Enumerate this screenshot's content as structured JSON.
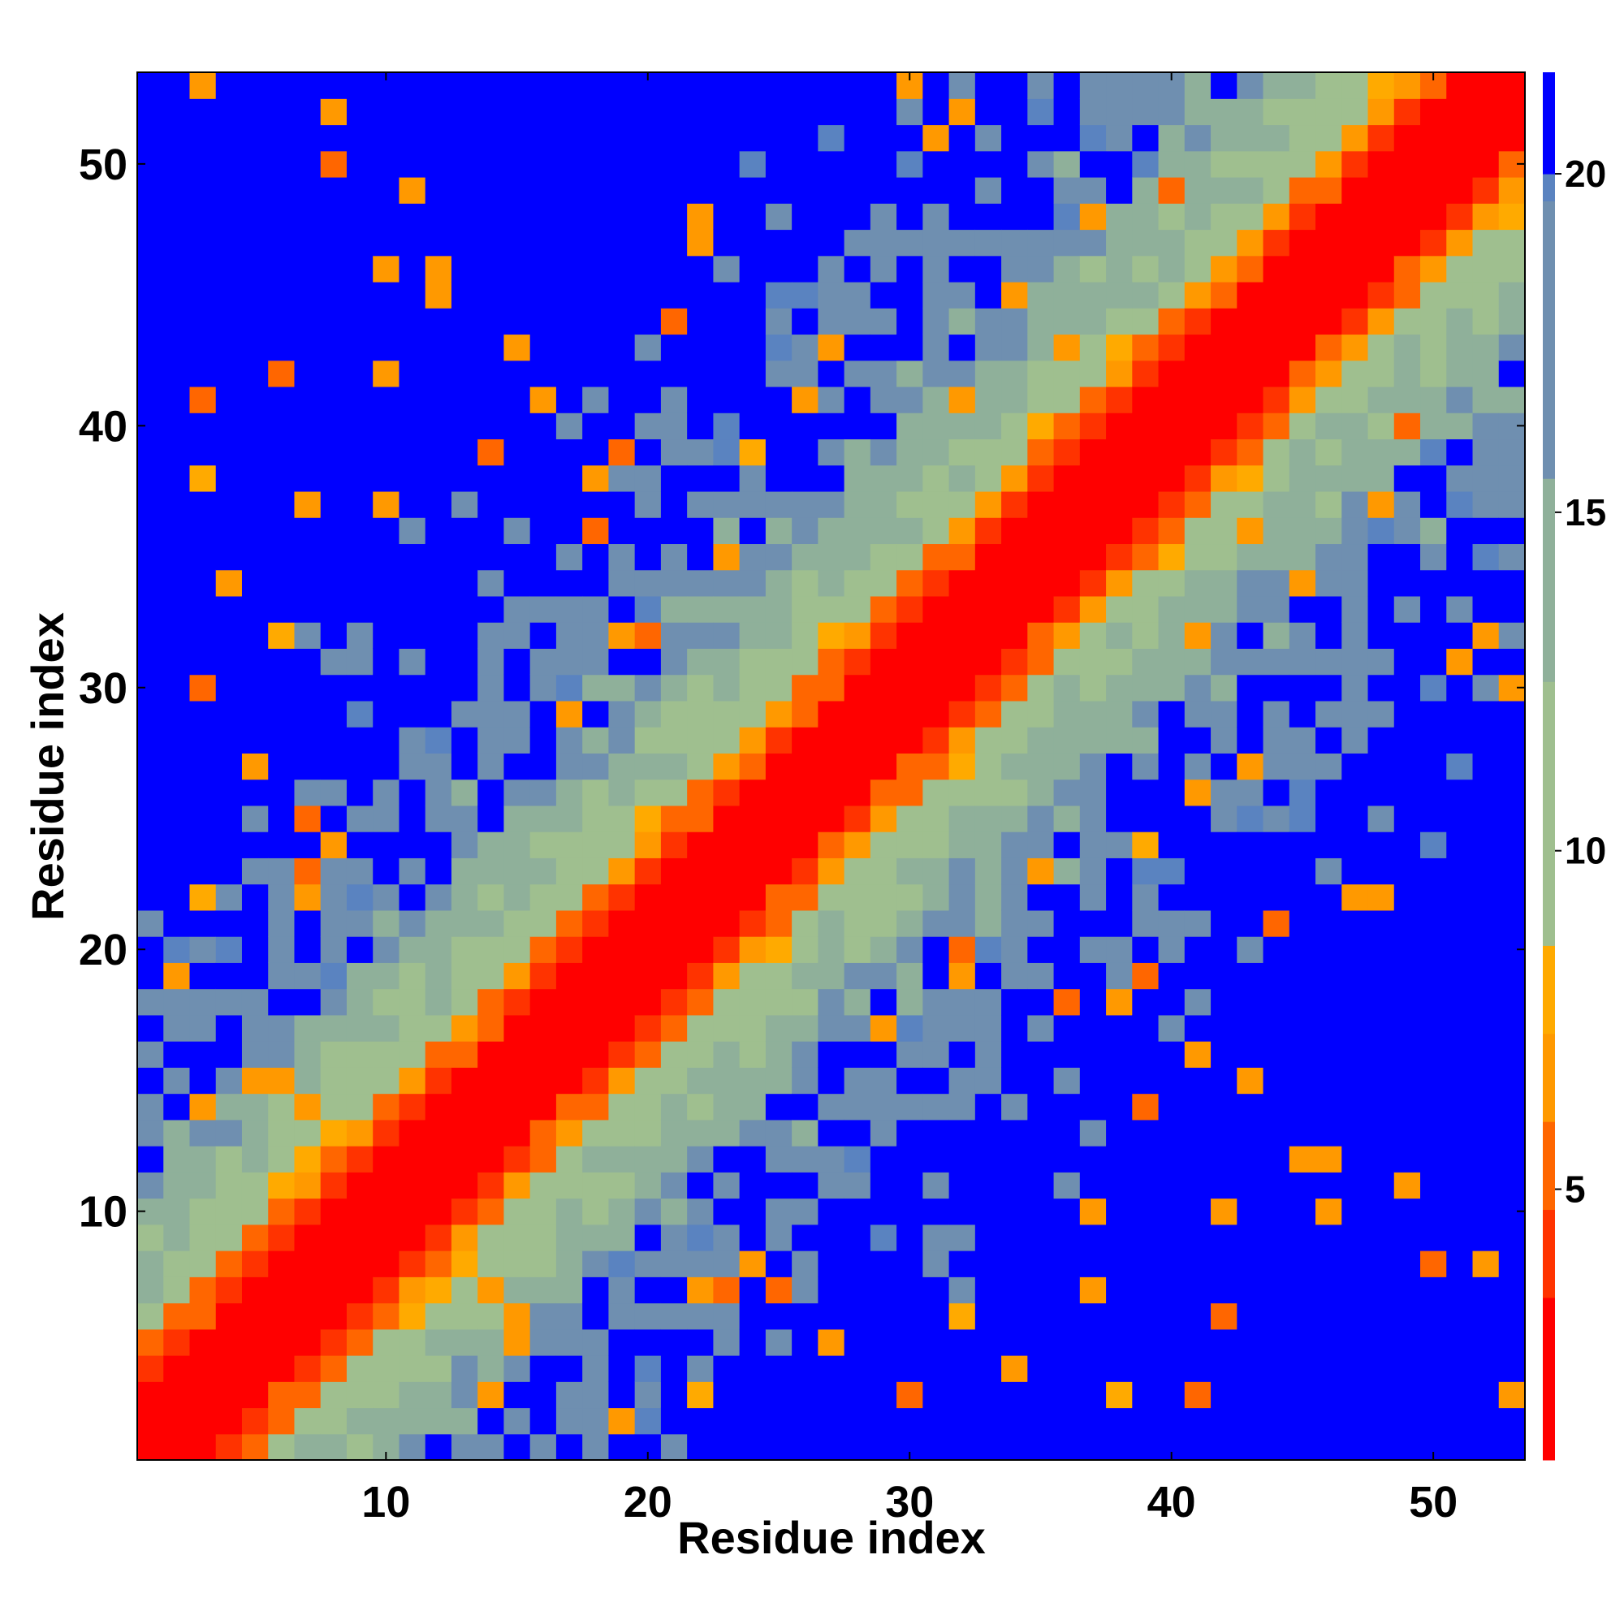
{
  "chart_data": {
    "type": "heatmap",
    "title": "",
    "xlabel": "Residue index",
    "ylabel": "Residue index",
    "n": 53,
    "x_ticks": [
      10,
      20,
      30,
      40,
      50
    ],
    "y_ticks": [
      10,
      20,
      30,
      40,
      50
    ],
    "colorbar": {
      "ticks": [
        5,
        10,
        15,
        20
      ],
      "range": [
        1,
        21.5
      ],
      "colors": [
        "#ff0000",
        "#ff3300",
        "#ff6600",
        "#ff9900",
        "#ffaa00",
        "#9fbf8f",
        "#8fb09a",
        "#6f8fb0",
        "#5a83c0",
        "#0000ff"
      ],
      "bounds": [
        0,
        3.4,
        4.7,
        6,
        7.3,
        8.6,
        12.5,
        15.5,
        19.6,
        20,
        99
      ]
    },
    "colormap_note": "",
    "values_description": "",
    "values": []
  }
}
